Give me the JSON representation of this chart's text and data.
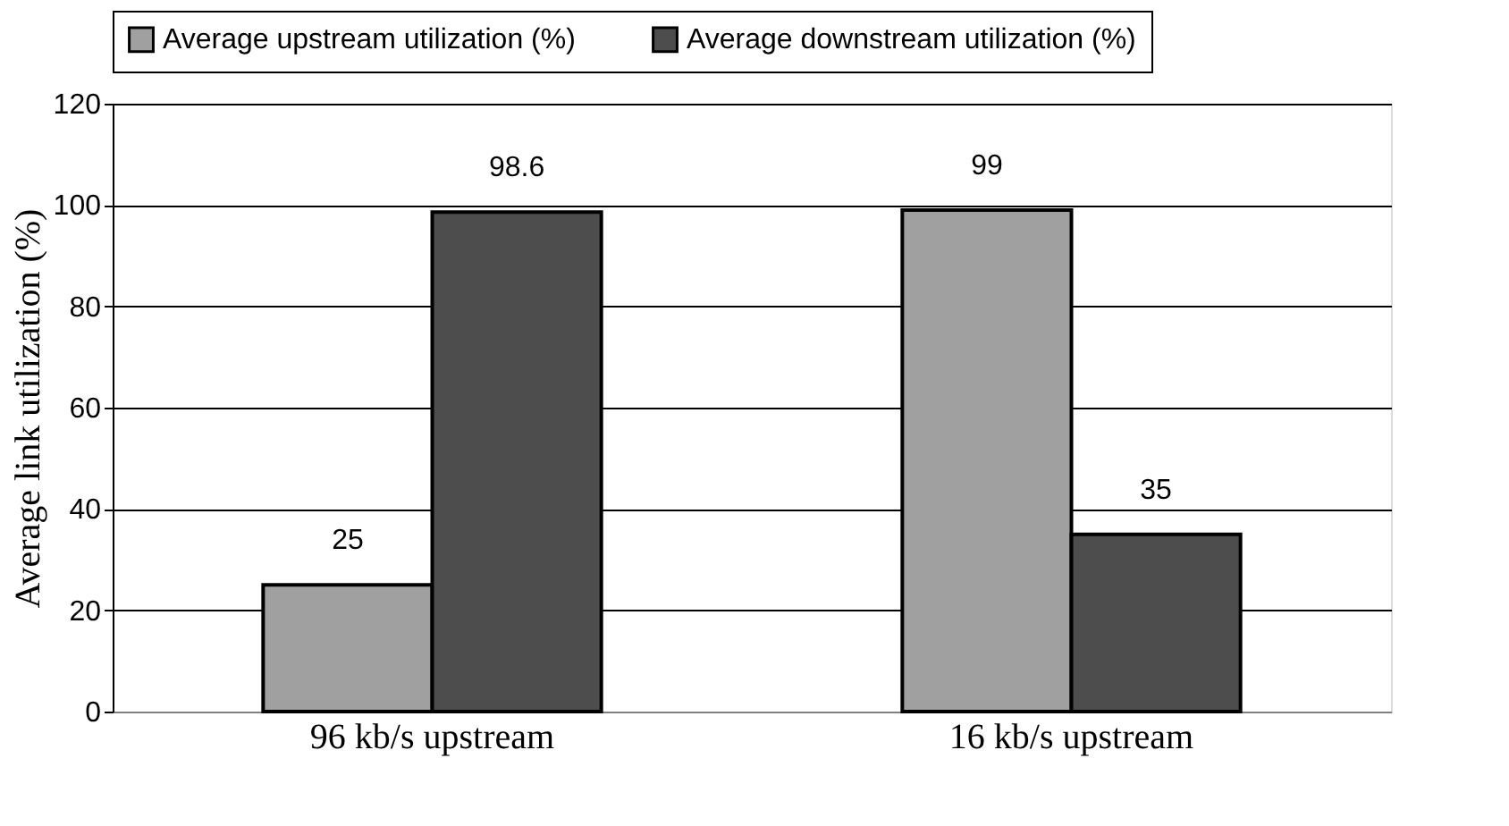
{
  "chart_data": {
    "type": "bar",
    "ylabel": "Average link utilization (%)",
    "categories": [
      "96 kb/s upstream",
      "16 kb/s upstream"
    ],
    "series": [
      {
        "name": "Average upstream utilization (%)",
        "color": "#a0a0a0",
        "values": [
          25,
          99
        ]
      },
      {
        "name": "Average downstream utilization (%)",
        "color": "#4d4d4d",
        "values": [
          98.6,
          35
        ]
      }
    ],
    "ylim": [
      0,
      120
    ],
    "yticks": [
      0,
      20,
      40,
      60,
      80,
      100,
      120
    ],
    "grid": "y",
    "legend": "top",
    "data_labels": true
  }
}
